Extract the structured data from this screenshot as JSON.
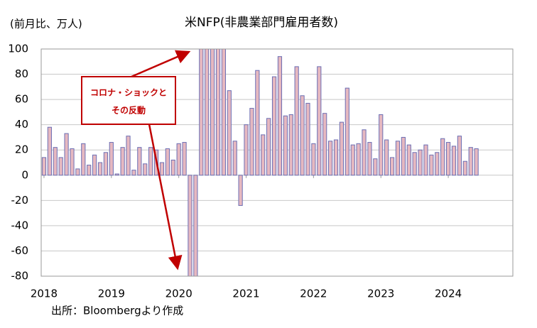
{
  "chart_data": {
    "type": "bar",
    "title": "米NFP(非農業部門雇用者数)",
    "y_axis_label": "(前月比、万人)",
    "source": "出所：Bloombergより作成",
    "annotation": [
      "コロナ・ショックと",
      "その反動"
    ],
    "year_labels": [
      "2018",
      "2019",
      "2020",
      "2021",
      "2022",
      "2023",
      "2024"
    ],
    "values": [
      14,
      38,
      22,
      14,
      33,
      21,
      5,
      25,
      8,
      16,
      10,
      18,
      26,
      1,
      22,
      31,
      4,
      22,
      9,
      22,
      20,
      10,
      21,
      12,
      25,
      26,
      -80,
      -80,
      100,
      100,
      100,
      100,
      100,
      67,
      27,
      -24,
      40,
      53,
      83,
      32,
      45,
      78,
      94,
      47,
      48,
      86,
      63,
      57,
      25,
      86,
      49,
      27,
      28,
      42,
      69,
      24,
      25,
      36,
      26,
      13,
      48,
      28,
      14,
      27,
      30,
      24,
      18,
      20,
      24,
      16,
      18,
      29,
      26,
      23,
      31,
      11,
      22,
      21
    ],
    "color": "#e6b8c0",
    "edge_color": "#6c6fb4",
    "ylim": [
      -80,
      100
    ],
    "yticks": [
      -80,
      -60,
      -40,
      -20,
      0,
      20,
      40,
      60,
      80,
      100
    ],
    "grid": true
  }
}
